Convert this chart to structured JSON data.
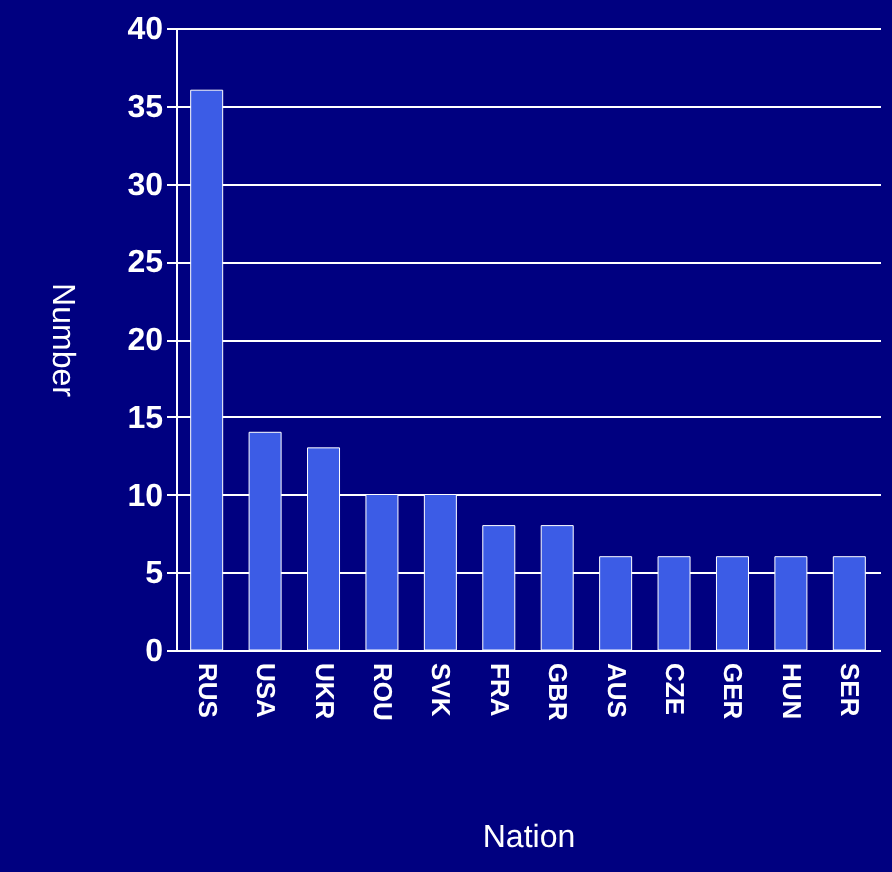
{
  "chart_data": {
    "type": "bar",
    "xlabel": "Nation",
    "ylabel": "Number",
    "categories": [
      "RUS",
      "USA",
      "UKR",
      "ROU",
      "SVK",
      "FRA",
      "GBR",
      "AUS",
      "CZE",
      "GER",
      "HUN",
      "SER"
    ],
    "values": [
      36,
      14,
      13,
      10,
      10,
      8,
      8,
      6,
      6,
      6,
      6,
      6
    ],
    "color": "#3c5ce6",
    "ylim": [
      0,
      40
    ],
    "yticks": [
      0,
      5,
      10,
      15,
      20,
      25,
      30,
      35,
      40
    ],
    "grid": "y"
  }
}
